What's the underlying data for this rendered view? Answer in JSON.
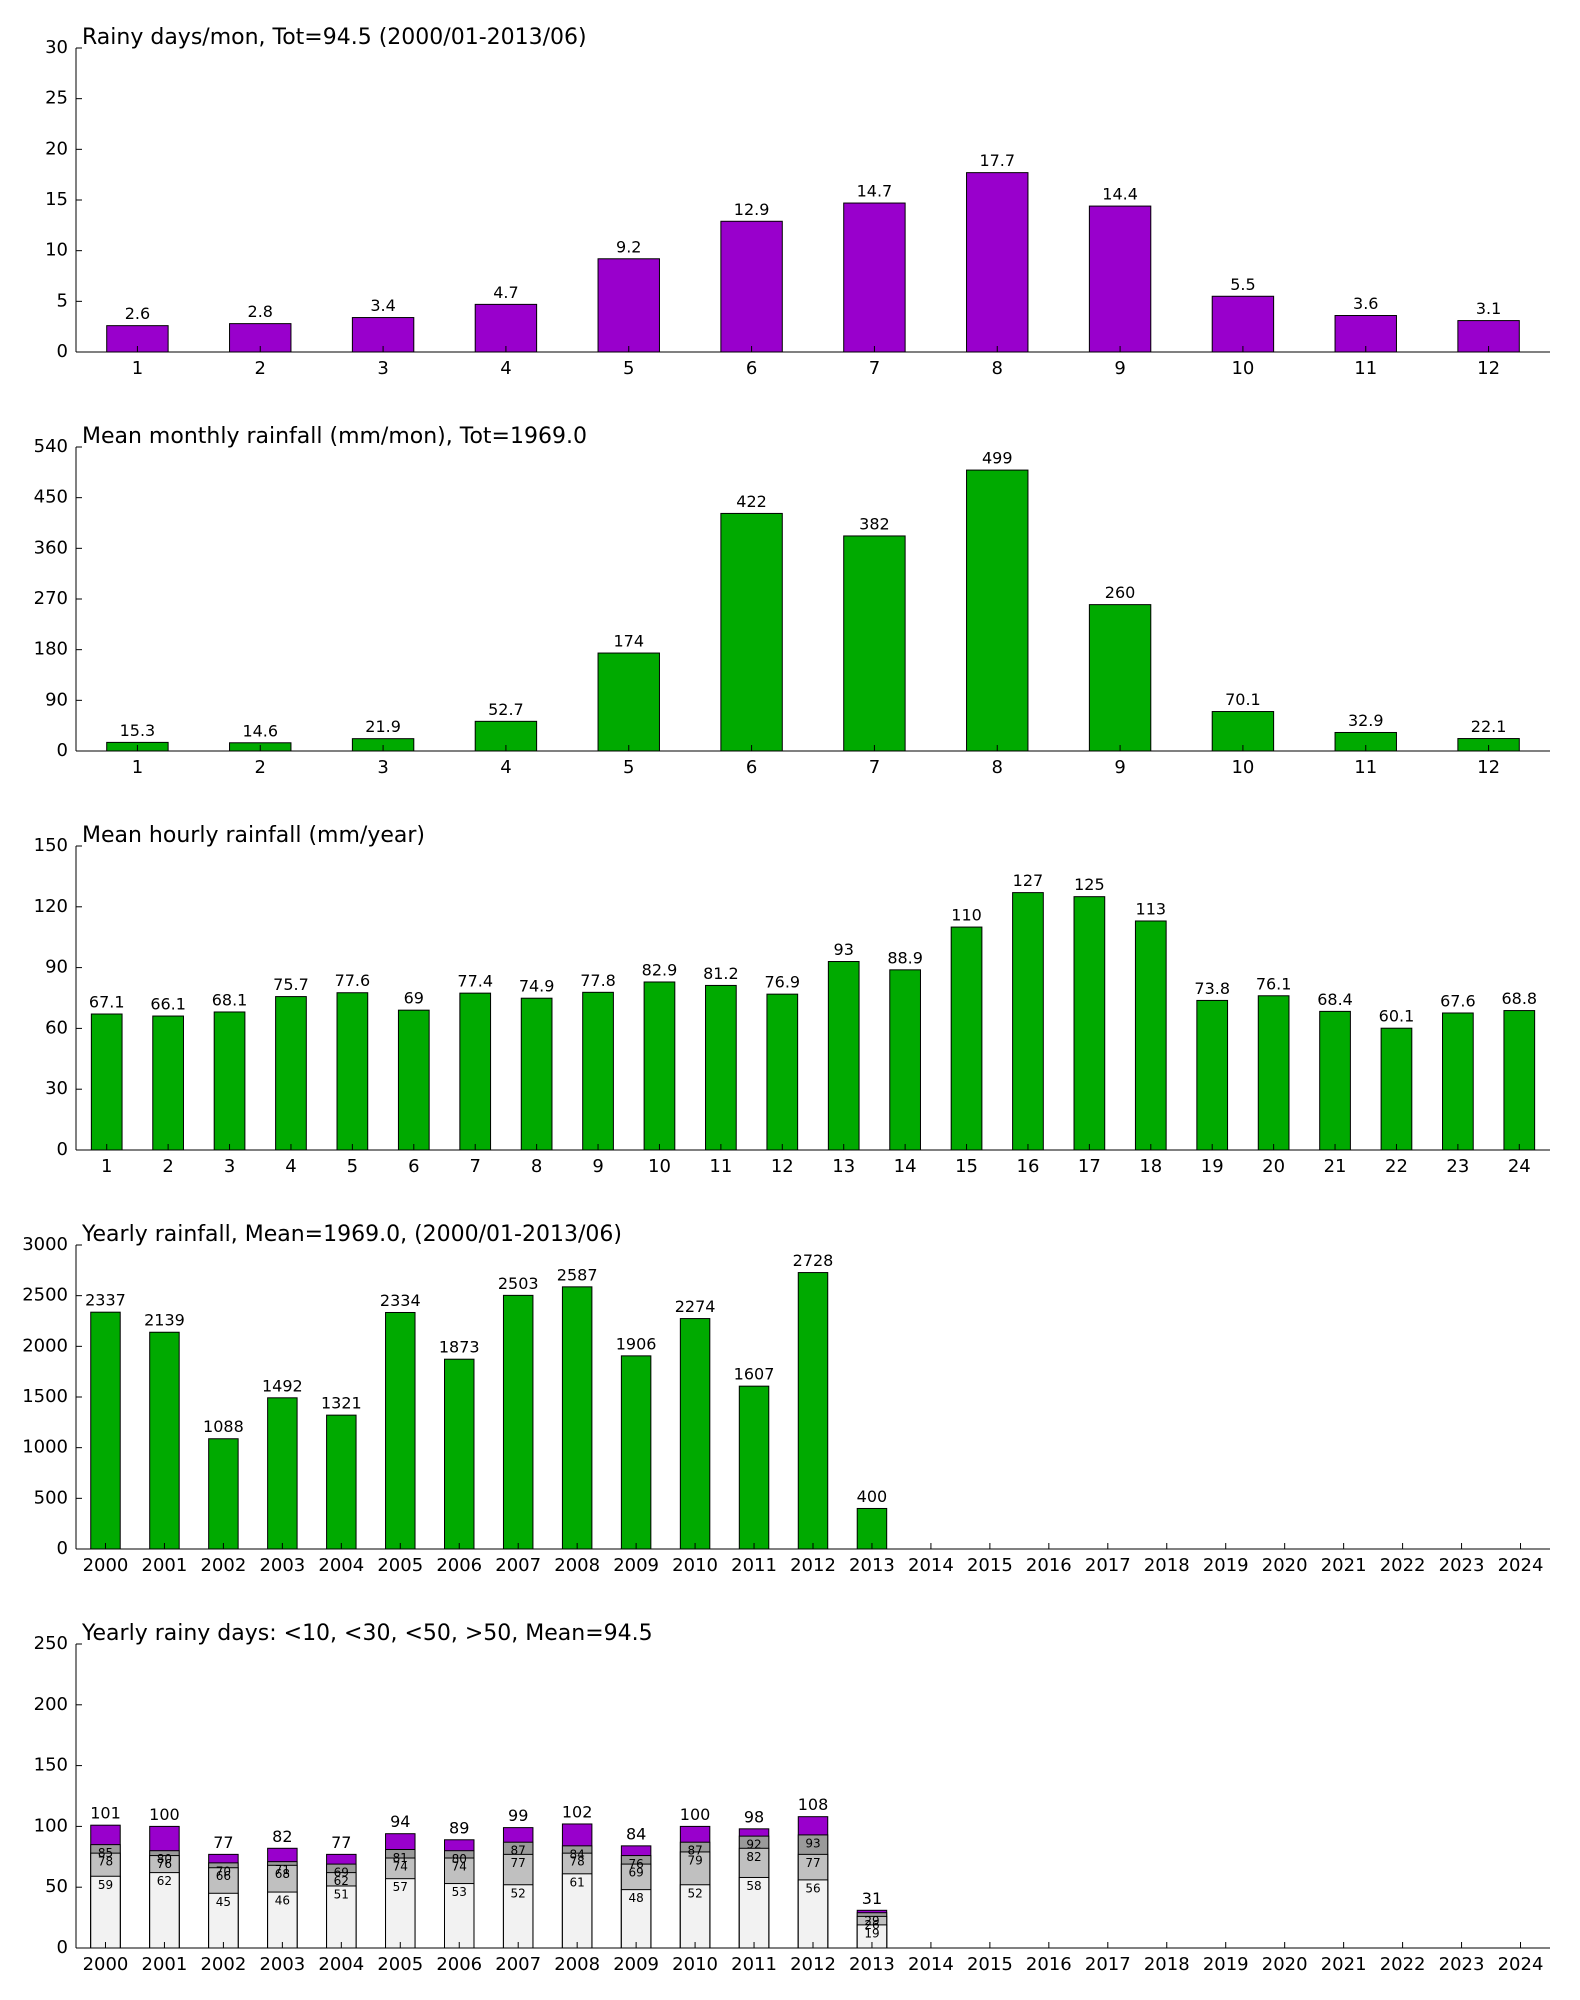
{
  "chart_data": [
    {
      "type": "bar",
      "title": "Rainy days/mon, Tot=94.5 (2000/01-2013/06)",
      "categories": [
        "1",
        "2",
        "3",
        "4",
        "5",
        "6",
        "7",
        "8",
        "9",
        "10",
        "11",
        "12"
      ],
      "values": [
        2.6,
        2.8,
        3.4,
        4.7,
        9.2,
        12.9,
        14.7,
        17.7,
        14.4,
        5.5,
        3.6,
        3.1
      ],
      "color": "#9900cc",
      "ylim": [
        0,
        30
      ],
      "yticks": [
        0,
        5,
        10,
        15,
        20,
        25,
        30
      ],
      "grid": false
    },
    {
      "type": "bar",
      "title": "Mean monthly rainfall (mm/mon), Tot=1969.0",
      "categories": [
        "1",
        "2",
        "3",
        "4",
        "5",
        "6",
        "7",
        "8",
        "9",
        "10",
        "11",
        "12"
      ],
      "values": [
        15.3,
        14.6,
        21.9,
        52.7,
        174,
        422,
        382,
        499,
        260,
        70.1,
        32.9,
        22.1
      ],
      "color": "#00aa00",
      "ylim": [
        0,
        540
      ],
      "yticks": [
        0,
        90,
        180,
        270,
        360,
        450,
        540
      ],
      "grid": false
    },
    {
      "type": "bar",
      "title": "Mean hourly rainfall (mm/year)",
      "categories": [
        "1",
        "2",
        "3",
        "4",
        "5",
        "6",
        "7",
        "8",
        "9",
        "10",
        "11",
        "12",
        "13",
        "14",
        "15",
        "16",
        "17",
        "18",
        "19",
        "20",
        "21",
        "22",
        "23",
        "24"
      ],
      "values": [
        67.1,
        66.1,
        68.1,
        75.7,
        77.6,
        69,
        77.4,
        74.9,
        77.8,
        82.9,
        81.2,
        76.9,
        93,
        88.9,
        110,
        127,
        125,
        113,
        73.8,
        76.1,
        68.4,
        60.1,
        67.6,
        68.8
      ],
      "color": "#00aa00",
      "ylim": [
        0,
        150
      ],
      "yticks": [
        0,
        30,
        60,
        90,
        120,
        150
      ],
      "grid": false
    },
    {
      "type": "bar",
      "title": "Yearly rainfall, Mean=1969.0, (2000/01-2013/06)",
      "categories": [
        "2000",
        "2001",
        "2002",
        "2003",
        "2004",
        "2005",
        "2006",
        "2007",
        "2008",
        "2009",
        "2010",
        "2011",
        "2012",
        "2013",
        "2014",
        "2015",
        "2016",
        "2017",
        "2018",
        "2019",
        "2020",
        "2021",
        "2022",
        "2023",
        "2024"
      ],
      "values": [
        2337,
        2139,
        1088,
        1492,
        1321,
        2334,
        1873,
        2503,
        2587,
        1906,
        2274,
        1607,
        2728,
        400,
        null,
        null,
        null,
        null,
        null,
        null,
        null,
        null,
        null,
        null,
        null
      ],
      "color": "#00aa00",
      "ylim": [
        0,
        3000
      ],
      "yticks": [
        0,
        500,
        1000,
        1500,
        2000,
        2500,
        3000
      ],
      "grid": false
    },
    {
      "type": "bar",
      "barmode": "overlay",
      "title": "Yearly rainy days: <10, <30, <50, >50, Mean=94.5",
      "categories": [
        "2000",
        "2001",
        "2002",
        "2003",
        "2004",
        "2005",
        "2006",
        "2007",
        "2008",
        "2009",
        "2010",
        "2011",
        "2012",
        "2013",
        "2014",
        "2015",
        "2016",
        "2017",
        "2018",
        "2019",
        "2020",
        "2021",
        "2022",
        "2023",
        "2024"
      ],
      "series": [
        {
          "color": "#f2f2f2",
          "values": [
            59,
            62,
            45,
            46,
            51,
            57,
            53,
            52,
            61,
            48,
            52,
            58,
            56,
            19,
            null,
            null,
            null,
            null,
            null,
            null,
            null,
            null,
            null,
            null,
            null
          ]
        },
        {
          "color": "#c0c0c0",
          "values": [
            78,
            76,
            66,
            68,
            62,
            74,
            74,
            77,
            78,
            69,
            79,
            82,
            77,
            26,
            null,
            null,
            null,
            null,
            null,
            null,
            null,
            null,
            null,
            null,
            null
          ]
        },
        {
          "color": "#9a9a9a",
          "values": [
            85,
            80,
            70,
            71,
            69,
            81,
            80,
            87,
            84,
            76,
            87,
            92,
            93,
            29,
            null,
            null,
            null,
            null,
            null,
            null,
            null,
            null,
            null,
            null,
            null
          ]
        },
        {
          "color": "#9900cc",
          "values": [
            101,
            100,
            77,
            82,
            77,
            94,
            89,
            99,
            102,
            84,
            100,
            98,
            108,
            31,
            null,
            null,
            null,
            null,
            null,
            null,
            null,
            null,
            null,
            null,
            null
          ]
        }
      ],
      "ylim": [
        0,
        250
      ],
      "yticks": [
        0,
        50,
        100,
        150,
        200,
        250
      ],
      "grid": false
    }
  ]
}
